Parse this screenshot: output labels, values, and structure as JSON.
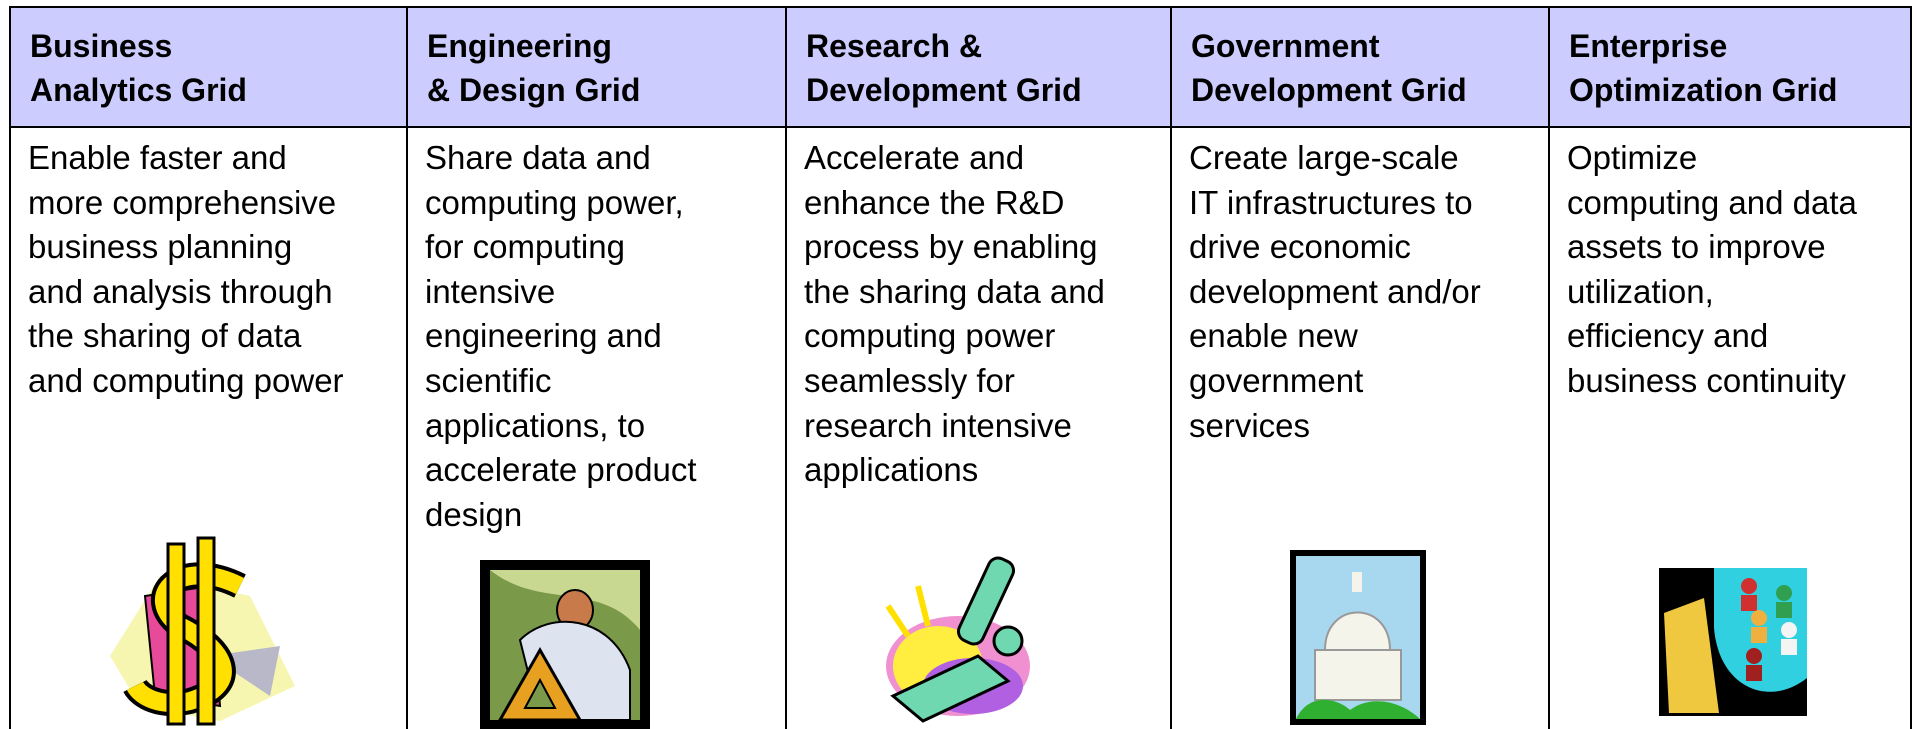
{
  "table": {
    "columns": [
      {
        "title": [
          "Business",
          "Analytics Grid"
        ],
        "description": [
          "Enable faster and",
          "more comprehensive",
          "business planning",
          "and analysis through",
          "the sharing of data",
          "and computing power"
        ]
      },
      {
        "title": [
          "Engineering",
          "& Design Grid"
        ],
        "description": [
          "Share data and",
          "computing power,",
          "for computing",
          "intensive",
          "engineering and",
          "scientific",
          "applications, to",
          "accelerate product",
          "design"
        ]
      },
      {
        "title": [
          "Research &",
          "Development Grid"
        ],
        "description": [
          "Accelerate and",
          "enhance the R&D",
          "process by enabling",
          "the sharing data and",
          "computing power",
          "seamlessly for",
          "research intensive",
          "applications"
        ]
      },
      {
        "title": [
          "Government",
          "Development Grid"
        ],
        "description": [
          "Create large-scale",
          "IT infrastructures to",
          "drive economic",
          "development and/or",
          "enable new",
          "government",
          "services"
        ]
      },
      {
        "title": [
          "Enterprise",
          "Optimization Grid"
        ],
        "description": [
          "Optimize",
          "computing and data",
          "assets to improve",
          "utilization,",
          "efficiency and",
          "business continuity"
        ]
      }
    ]
  }
}
